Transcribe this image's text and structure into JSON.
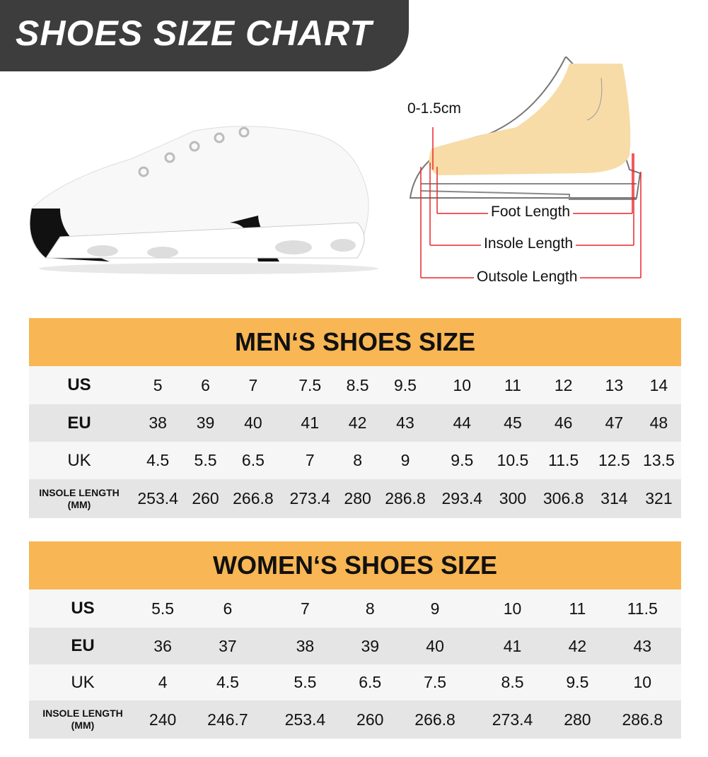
{
  "banner": {
    "title": "SHOES SIZE CHART"
  },
  "diagram": {
    "toe_gap": "0-1.5cm",
    "foot_length": "Foot Length",
    "insole_length": "Insole Length",
    "outsole_length": "Outsole Length"
  },
  "colors": {
    "banner": "#3d3d3d",
    "header": "#F8B654",
    "measure_lines": "#e8262b"
  },
  "men": {
    "title": "MEN‘S SHOES SIZE",
    "rows": [
      {
        "label": "US",
        "values": [
          "5",
          "6",
          "7",
          "7.5",
          "8.5",
          "9.5",
          "10",
          "11",
          "12",
          "13",
          "14"
        ]
      },
      {
        "label": "EU",
        "values": [
          "38",
          "39",
          "40",
          "41",
          "42",
          "43",
          "44",
          "45",
          "46",
          "47",
          "48"
        ]
      },
      {
        "label": "UK",
        "values": [
          "4.5",
          "5.5",
          "6.5",
          "7",
          "8",
          "9",
          "9.5",
          "10.5",
          "11.5",
          "12.5",
          "13.5"
        ]
      },
      {
        "label": "INSOLE LENGTH",
        "label2": "(MM)",
        "values": [
          "253.4",
          "260",
          "266.8",
          "273.4",
          "280",
          "286.8",
          "293.4",
          "300",
          "306.8",
          "314",
          "321"
        ]
      }
    ]
  },
  "women": {
    "title": "WOMEN‘S SHOES SIZE",
    "rows": [
      {
        "label": "US",
        "values": [
          "5.5",
          "6",
          "7",
          "8",
          "9",
          "10",
          "11",
          "11.5"
        ]
      },
      {
        "label": "EU",
        "values": [
          "36",
          "37",
          "38",
          "39",
          "40",
          "41",
          "42",
          "43"
        ]
      },
      {
        "label": "UK",
        "values": [
          "4",
          "4.5",
          "5.5",
          "6.5",
          "7.5",
          "8.5",
          "9.5",
          "10"
        ]
      },
      {
        "label": "INSOLE LENGTH",
        "label2": "(MM)",
        "values": [
          "240",
          "246.7",
          "253.4",
          "260",
          "266.8",
          "273.4",
          "280",
          "286.8"
        ]
      }
    ]
  }
}
